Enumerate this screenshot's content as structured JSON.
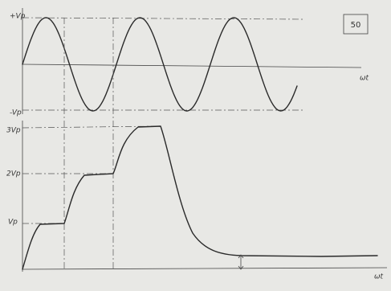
{
  "top_plot": {
    "y_labels": [
      "+Vp",
      "-Vp"
    ],
    "x_label": "ωt"
  },
  "bottom_plot": {
    "y_labels": [
      "3Vp",
      "2Vp",
      "Vp"
    ],
    "x_label": "ωt"
  },
  "page_number": "50"
}
